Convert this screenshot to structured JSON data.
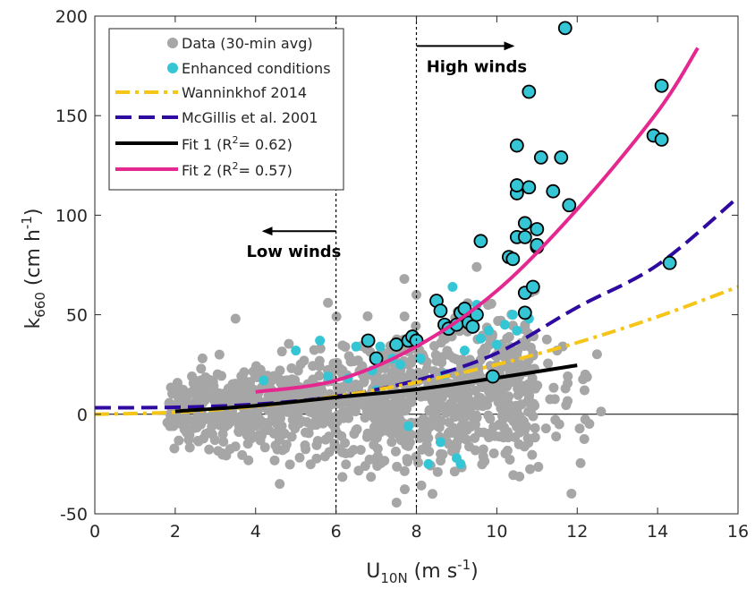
{
  "chart_data": {
    "type": "scatter",
    "xlabel": "U",
    "xlabel_sub": "10N",
    "xlabel_units": " (m s",
    "xlabel_sup": "-1",
    "xlabel_close": ")",
    "ylabel": "k",
    "ylabel_sub": "660",
    "ylabel_units": " (cm h",
    "ylabel_sup": "-1",
    "ylabel_close": ")",
    "xlim": [
      0,
      16
    ],
    "ylim": [
      -50,
      200
    ],
    "xticks": [
      0,
      2,
      4,
      6,
      8,
      10,
      12,
      14,
      16
    ],
    "yticks": [
      -50,
      0,
      50,
      100,
      150,
      200
    ],
    "grid": false,
    "legend_position": "top-left",
    "annotations": {
      "high_winds": "High winds",
      "low_winds": "Low winds",
      "vertical_lines_x": [
        6,
        8
      ],
      "low_arrow": {
        "from_x": 6,
        "to_x": 4.2,
        "y": 92
      },
      "high_arrow": {
        "from_x": 8,
        "to_x": 10.4,
        "y": 185
      }
    },
    "legend": [
      {
        "key": "data",
        "label": "Data (30-min avg)"
      },
      {
        "key": "enhanced",
        "label": "Enhanced conditions"
      },
      {
        "key": "wanninkhof",
        "label": "Wanninkhof 2014"
      },
      {
        "key": "mcgillis",
        "label": "McGillis et al. 2001"
      },
      {
        "key": "fit1",
        "label_pre": "Fit 1 (R",
        "label_sup": "2",
        "label_post": "= 0.62)"
      },
      {
        "key": "fit2",
        "label_pre": "Fit 2 (R",
        "label_sup": "2",
        "label_post": "= 0.57)"
      }
    ],
    "colors": {
      "data": "#a6a6a6",
      "enhanced": "#35c6d6",
      "wanninkhof": "#f5c518",
      "mcgillis": "#2e0aa0",
      "fit1": "#000000",
      "fit2": "#e4288f"
    },
    "series": [
      {
        "name": "Data (30-min avg)",
        "note_count_approx": 1200,
        "x_range": [
          1.8,
          12.6
        ],
        "points_sample": [
          [
            2.2,
            12
          ],
          [
            3.1,
            30
          ],
          [
            3.5,
            48
          ],
          [
            4.6,
            -35
          ],
          [
            5.8,
            56
          ],
          [
            7.7,
            68
          ],
          [
            8.0,
            60
          ],
          [
            8.4,
            -40
          ],
          [
            9.5,
            74
          ],
          [
            10.1,
            47
          ],
          [
            12.2,
            20
          ],
          [
            11.5,
            32
          ]
        ]
      },
      {
        "name": "Enhanced conditions",
        "points": [
          [
            4.2,
            17
          ],
          [
            5.0,
            32
          ],
          [
            5.6,
            37
          ],
          [
            5.8,
            19
          ],
          [
            6.5,
            34
          ],
          [
            6.9,
            22
          ],
          [
            7.1,
            34
          ],
          [
            7.4,
            28
          ],
          [
            7.8,
            -6
          ],
          [
            7.9,
            40
          ],
          [
            8.1,
            28
          ],
          [
            8.3,
            -25
          ],
          [
            8.6,
            -14
          ],
          [
            8.9,
            64
          ],
          [
            9.0,
            -22
          ],
          [
            9.1,
            -25
          ],
          [
            9.3,
            50
          ],
          [
            9.5,
            55
          ],
          [
            9.6,
            38
          ],
          [
            9.8,
            42
          ],
          [
            10.0,
            35
          ],
          [
            10.2,
            45
          ],
          [
            10.4,
            50
          ],
          [
            10.5,
            42
          ],
          [
            10.8,
            48
          ],
          [
            6.3,
            18
          ],
          [
            7.0,
            12
          ],
          [
            7.6,
            25
          ],
          [
            8.7,
            20
          ],
          [
            9.2,
            32
          ]
        ]
      },
      {
        "name": "Enhanced conditions (outlined)",
        "points": [
          [
            6.8,
            37
          ],
          [
            7.0,
            28
          ],
          [
            7.5,
            35
          ],
          [
            7.8,
            37
          ],
          [
            7.9,
            39
          ],
          [
            8.0,
            37
          ],
          [
            8.5,
            57
          ],
          [
            8.6,
            52
          ],
          [
            8.7,
            45
          ],
          [
            8.8,
            43
          ],
          [
            9.0,
            45
          ],
          [
            9.1,
            51
          ],
          [
            9.2,
            53
          ],
          [
            9.3,
            46
          ],
          [
            9.4,
            44
          ],
          [
            9.5,
            50
          ],
          [
            9.6,
            87
          ],
          [
            9.9,
            19
          ],
          [
            10.3,
            79
          ],
          [
            10.4,
            78
          ],
          [
            10.5,
            89
          ],
          [
            10.5,
            111
          ],
          [
            10.5,
            115
          ],
          [
            10.5,
            135
          ],
          [
            10.7,
            96
          ],
          [
            10.7,
            61
          ],
          [
            10.7,
            51
          ],
          [
            10.7,
            89
          ],
          [
            10.8,
            114
          ],
          [
            10.8,
            162
          ],
          [
            10.9,
            64
          ],
          [
            11.0,
            93
          ],
          [
            11.0,
            84
          ],
          [
            11.0,
            85
          ],
          [
            11.1,
            129
          ],
          [
            11.4,
            112
          ],
          [
            11.6,
            129
          ],
          [
            11.7,
            194
          ],
          [
            11.8,
            105
          ],
          [
            13.9,
            140
          ],
          [
            14.1,
            138
          ],
          [
            14.1,
            165
          ],
          [
            14.3,
            76
          ]
        ]
      },
      {
        "name": "Wanninkhof 2014",
        "x": [
          0,
          2,
          4,
          6,
          8,
          10,
          12,
          14,
          16
        ],
        "values": [
          0,
          1.0,
          4.0,
          9.0,
          16.0,
          25.0,
          36.0,
          49.0,
          64.0
        ]
      },
      {
        "name": "McGillis et al. 2001",
        "x": [
          0,
          2,
          4,
          6,
          8,
          10,
          12,
          14,
          16
        ],
        "values": [
          3.3,
          3.5,
          5.0,
          9.0,
          17.0,
          30.7,
          53.7,
          75.0,
          109.0
        ]
      },
      {
        "name": "Fit 1",
        "x": [
          2,
          4,
          6,
          8,
          10,
          12
        ],
        "values": [
          1.5,
          4.3,
          8.5,
          12.5,
          18.3,
          24.6
        ]
      },
      {
        "name": "Fit 2",
        "x": [
          4,
          6,
          8,
          10,
          12,
          14,
          15
        ],
        "values": [
          11.2,
          17.0,
          34.0,
          62.0,
          103.0,
          152.0,
          184.0
        ]
      }
    ]
  }
}
